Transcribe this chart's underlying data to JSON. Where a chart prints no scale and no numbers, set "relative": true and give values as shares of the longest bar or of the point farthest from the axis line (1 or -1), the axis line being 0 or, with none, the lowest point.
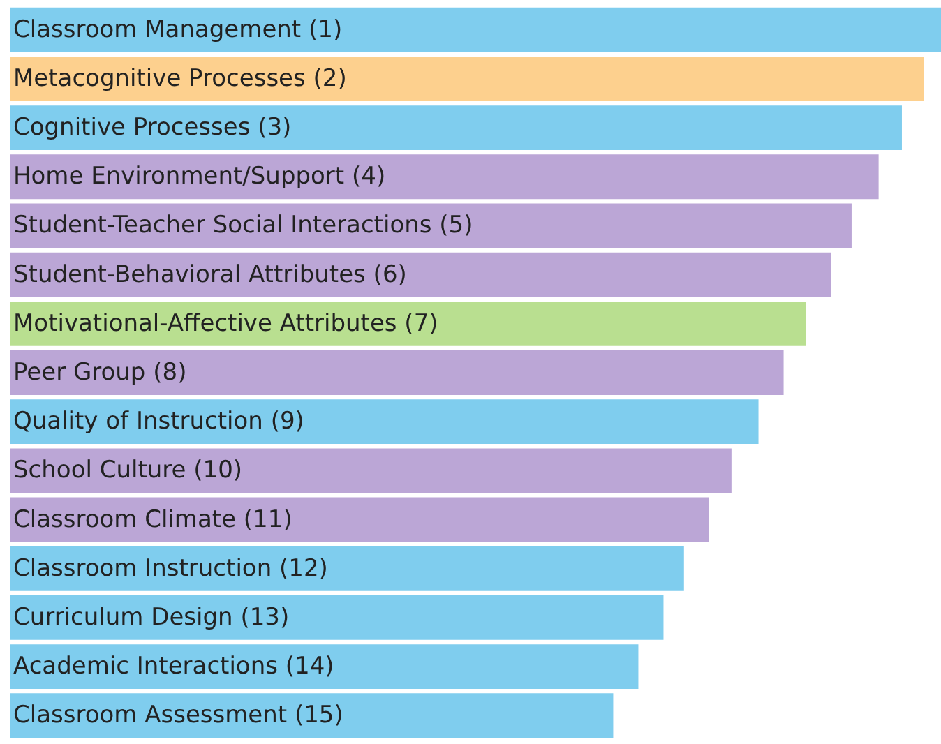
{
  "chart_data": {
    "type": "bar",
    "orientation": "horizontal",
    "relative": true,
    "categories": [
      "Classroom Management (1)",
      "Metacognitive Processes (2)",
      "Cognitive Processes (3)",
      "Home Environment/Support (4)",
      "Student-Teacher Social Interactions (5)",
      "Student-Behavioral Attributes (6)",
      "Motivational-Affective Attributes (7)",
      "Peer Group (8)",
      "Quality of Instruction (9)",
      "School Culture (10)",
      "Classroom Climate (11)",
      "Classroom Instruction (12)",
      "Curriculum Design (13)",
      "Academic Interactions (14)",
      "Classroom Assessment (15)"
    ],
    "values": [
      1,
      0.982,
      0.958,
      0.933,
      0.904,
      0.882,
      0.855,
      0.831,
      0.804,
      0.775,
      0.751,
      0.724,
      0.702,
      0.675,
      0.648
    ],
    "colors": [
      "#7fcdee",
      "#fdd08e",
      "#7fcdee",
      "#bba6d6",
      "#bba6d6",
      "#bba6d6",
      "#b9df90",
      "#bba6d6",
      "#7fcdee",
      "#bba6d6",
      "#bba6d6",
      "#7fcdee",
      "#7fcdee",
      "#7fcdee",
      "#7fcdee"
    ]
  }
}
